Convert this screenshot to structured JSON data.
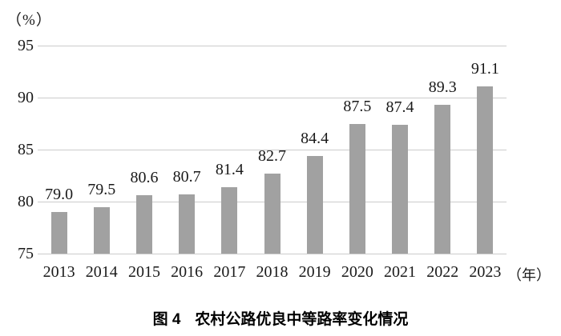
{
  "chart_data": {
    "type": "bar",
    "title": "图4 农村公路优良中等路率变化情况",
    "y_unit_label": "（%）",
    "x_unit_label": "（年）",
    "categories": [
      "2013",
      "2014",
      "2015",
      "2016",
      "2017",
      "2018",
      "2019",
      "2020",
      "2021",
      "2022",
      "2023"
    ],
    "values": [
      79.0,
      79.5,
      80.6,
      80.7,
      81.4,
      82.7,
      84.4,
      87.5,
      87.4,
      89.3,
      91.1
    ],
    "value_labels": [
      "79.0",
      "79.5",
      "80.6",
      "80.7",
      "81.4",
      "82.7",
      "84.4",
      "87.5",
      "87.4",
      "89.3",
      "91.1"
    ],
    "xlabel": "",
    "ylabel": "",
    "ylim": [
      75,
      95
    ],
    "yticks": [
      95,
      90,
      85,
      80,
      75
    ],
    "grid": true,
    "legend_position": "none",
    "bar_color": "#a1a1a1",
    "grid_color": "#cbcbcb"
  },
  "caption": {
    "figure_label": "图 4",
    "title": "农村公路优良中等路率变化情况"
  }
}
